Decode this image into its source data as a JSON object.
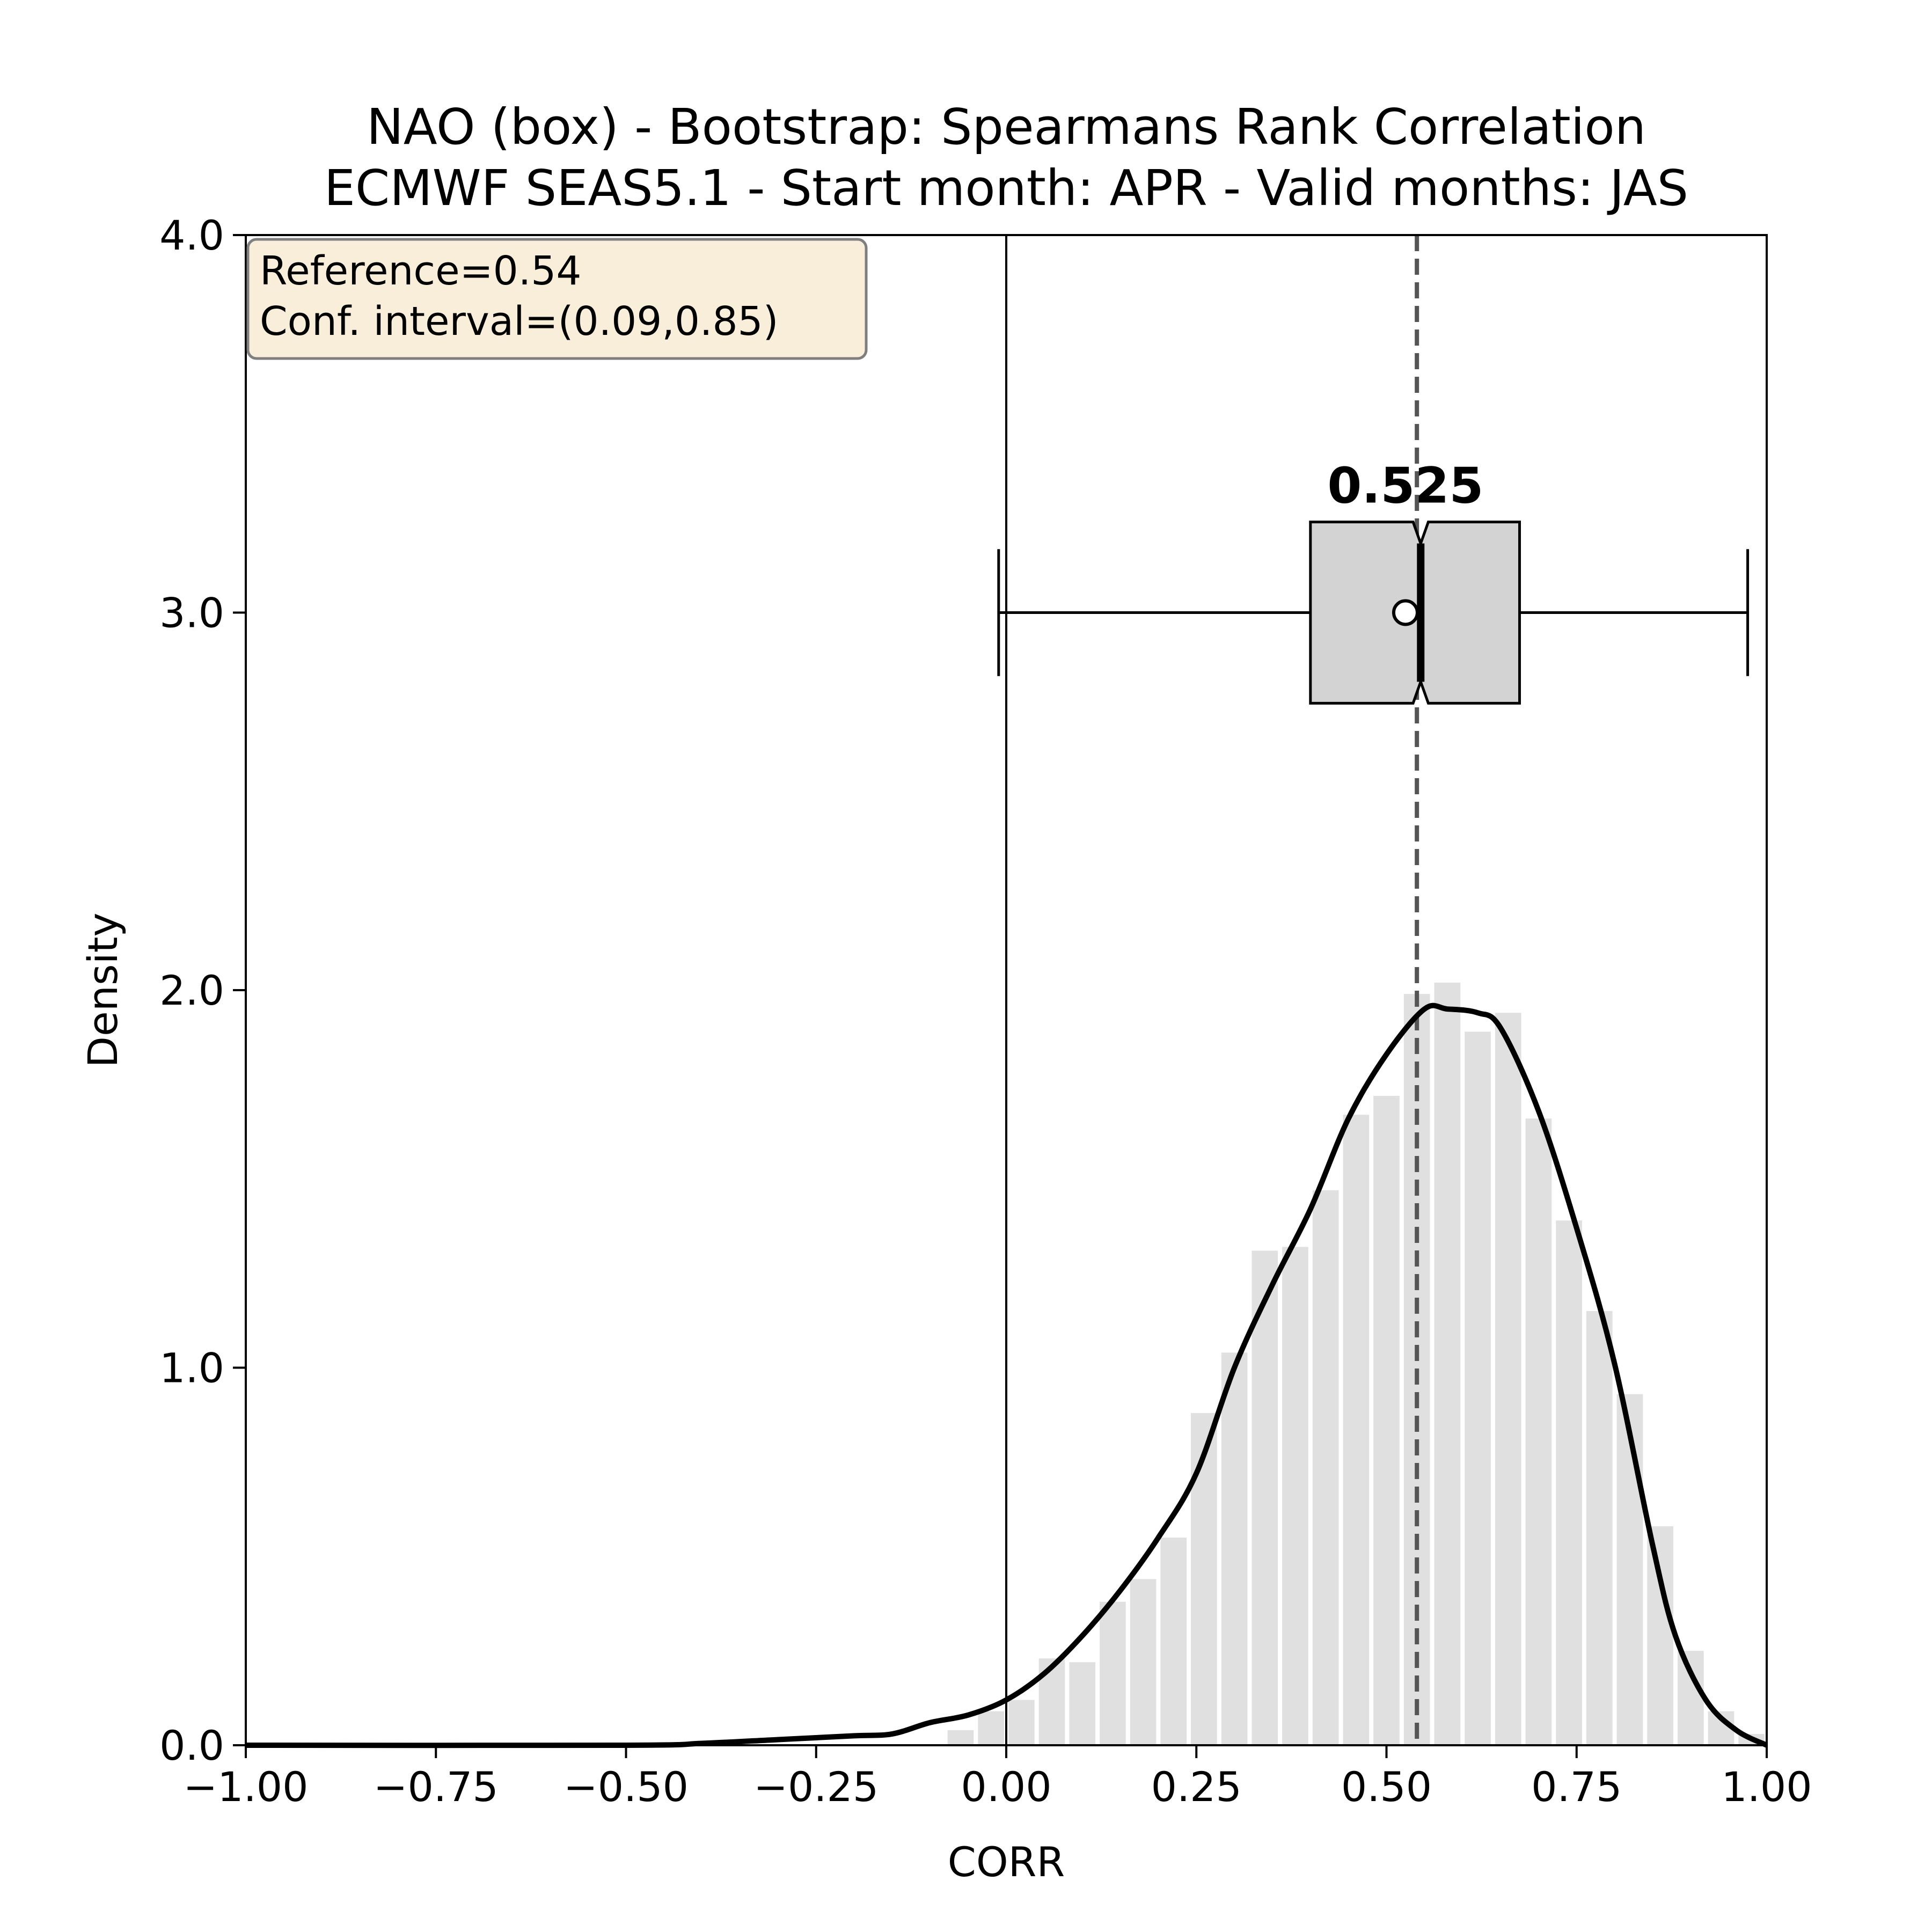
{
  "chart_data": {
    "type": "histogram",
    "title": "NAO (box) - Bootstrap: Spearmans Rank Correlation",
    "subtitle": "ECMWF SEAS5.1 - Start month: APR - Valid months: JAS",
    "xlabel": "CORR",
    "ylabel": "Density",
    "xlim": [
      -1.0,
      1.0
    ],
    "ylim": [
      0.0,
      4.0
    ],
    "x_ticks": [
      -1.0,
      -0.75,
      -0.5,
      -0.25,
      0.0,
      0.25,
      0.5,
      0.75,
      1.0
    ],
    "x_tick_labels": [
      "−1.00",
      "−0.75",
      "−0.50",
      "−0.25",
      "0.00",
      "0.25",
      "0.50",
      "0.75",
      "1.00"
    ],
    "y_ticks": [
      0.0,
      1.0,
      2.0,
      3.0,
      4.0
    ],
    "y_tick_labels": [
      "0.0",
      "1.0",
      "2.0",
      "3.0",
      "4.0"
    ],
    "grid": false,
    "colors": {
      "bars": "#e0e0e0",
      "kde": "#000000",
      "box_fill": "#d3d3d3",
      "reference_line": "#555555",
      "info_box_fill": "#f9eed9",
      "info_box_border": "#7f7f7f"
    },
    "histogram": {
      "bin_width": 0.04,
      "bins": [
        {
          "x": -0.06,
          "density": 0.04
        },
        {
          "x": -0.02,
          "density": 0.09
        },
        {
          "x": 0.02,
          "density": 0.12
        },
        {
          "x": 0.06,
          "density": 0.23
        },
        {
          "x": 0.1,
          "density": 0.22
        },
        {
          "x": 0.14,
          "density": 0.38
        },
        {
          "x": 0.18,
          "density": 0.44
        },
        {
          "x": 0.22,
          "density": 0.55
        },
        {
          "x": 0.26,
          "density": 0.88
        },
        {
          "x": 0.3,
          "density": 1.04
        },
        {
          "x": 0.34,
          "density": 1.31
        },
        {
          "x": 0.38,
          "density": 1.32
        },
        {
          "x": 0.42,
          "density": 1.47
        },
        {
          "x": 0.46,
          "density": 1.67
        },
        {
          "x": 0.5,
          "density": 1.72
        },
        {
          "x": 0.54,
          "density": 1.99
        },
        {
          "x": 0.58,
          "density": 2.02
        },
        {
          "x": 0.62,
          "density": 1.89
        },
        {
          "x": 0.66,
          "density": 1.94
        },
        {
          "x": 0.7,
          "density": 1.66
        },
        {
          "x": 0.74,
          "density": 1.39
        },
        {
          "x": 0.78,
          "density": 1.15
        },
        {
          "x": 0.82,
          "density": 0.93
        },
        {
          "x": 0.86,
          "density": 0.58
        },
        {
          "x": 0.9,
          "density": 0.25
        },
        {
          "x": 0.94,
          "density": 0.09
        },
        {
          "x": 0.98,
          "density": 0.03
        }
      ]
    },
    "kde": [
      [
        -1.0,
        0.0
      ],
      [
        -0.5,
        0.0
      ],
      [
        -0.4,
        0.005
      ],
      [
        -0.3,
        0.015
      ],
      [
        -0.2,
        0.025
      ],
      [
        -0.15,
        0.03
      ],
      [
        -0.1,
        0.06
      ],
      [
        -0.05,
        0.08
      ],
      [
        0.0,
        0.12
      ],
      [
        0.05,
        0.19
      ],
      [
        0.1,
        0.29
      ],
      [
        0.15,
        0.41
      ],
      [
        0.2,
        0.55
      ],
      [
        0.25,
        0.72
      ],
      [
        0.3,
        1.0
      ],
      [
        0.35,
        1.22
      ],
      [
        0.4,
        1.42
      ],
      [
        0.45,
        1.66
      ],
      [
        0.5,
        1.83
      ],
      [
        0.55,
        1.95
      ],
      [
        0.58,
        1.95
      ],
      [
        0.62,
        1.94
      ],
      [
        0.65,
        1.9
      ],
      [
        0.7,
        1.68
      ],
      [
        0.75,
        1.37
      ],
      [
        0.8,
        1.01
      ],
      [
        0.85,
        0.53
      ],
      [
        0.88,
        0.29
      ],
      [
        0.92,
        0.12
      ],
      [
        0.96,
        0.04
      ],
      [
        1.0,
        0.0
      ]
    ],
    "boxplot": {
      "y": 3.0,
      "whisker_low": -0.01,
      "q1": 0.4,
      "median": 0.545,
      "q3": 0.675,
      "whisker_high": 0.975,
      "mean": 0.525,
      "notch_low": 0.535,
      "notch_high": 0.555,
      "height": 0.48,
      "label": "0.525"
    },
    "reference_value": 0.54,
    "zero_line_x": 0.0,
    "info_box": {
      "line1": "Reference=0.54",
      "line2": "Conf. interval=(0.09,0.85)",
      "placement": "top-left"
    }
  }
}
